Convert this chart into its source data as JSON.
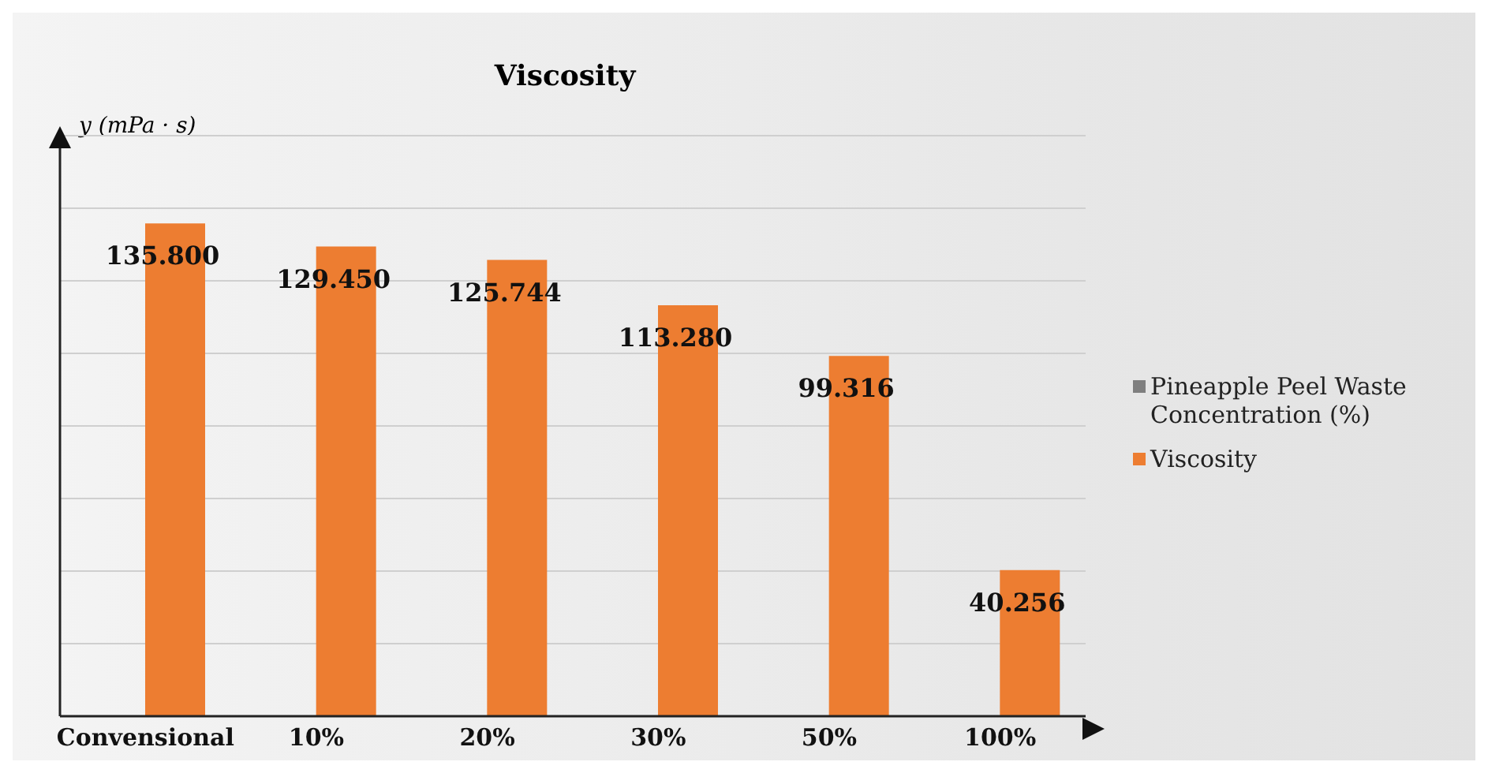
{
  "chart_data": {
    "type": "bar",
    "title": "Viscosity",
    "ylabel": "y (mPa · s)",
    "categories": [
      "Convensional",
      "10%",
      "20%",
      "30%",
      "50%",
      "100%"
    ],
    "series": [
      {
        "name": "Pineapple Peel Waste Concentration (%)",
        "color": "#7f7f7f",
        "values": [
          null,
          null,
          null,
          null,
          null,
          null
        ]
      },
      {
        "name": "Viscosity",
        "color": "#ed7d31",
        "values": [
          135.8,
          129.45,
          125.744,
          113.28,
          99.316,
          40.256
        ],
        "value_labels": [
          "135.800",
          "129.450",
          "125.744",
          "113.280",
          "99.316",
          "40.256"
        ]
      }
    ],
    "tick_labels": "x",
    "grid": "y",
    "legend": "right"
  }
}
